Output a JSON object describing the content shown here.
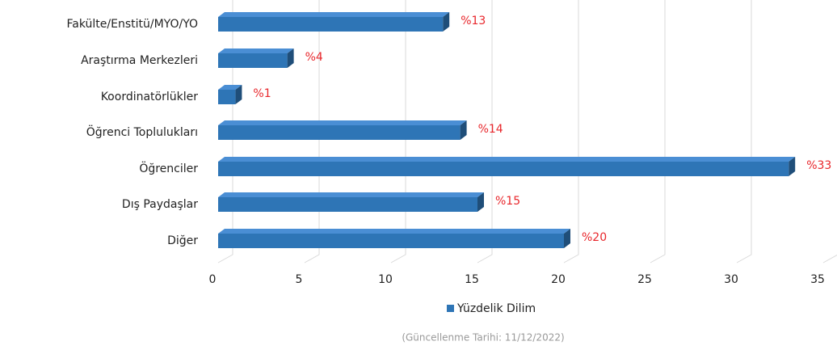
{
  "chart_data": {
    "type": "bar",
    "orientation": "horizontal",
    "categories": [
      "Fakülte/Enstitü/MYO/YO",
      "Araştırma Merkezleri",
      "Koordinatörlükler",
      "Öğrenci Toplulukları",
      "Öğrenciler",
      "Dış Paydaşlar",
      "Diğer"
    ],
    "series": [
      {
        "name": "Yüzdelik Dilim",
        "color": "#2e75b6",
        "values": [
          13,
          4,
          1,
          14,
          33,
          15,
          20
        ],
        "value_labels": [
          "%13",
          "%4",
          "%1",
          "%14",
          "%33",
          "%15",
          "%20"
        ]
      }
    ],
    "xlim": [
      0,
      35
    ],
    "xticks": [
      0,
      5,
      10,
      15,
      20,
      25,
      30,
      35
    ],
    "grid": true,
    "legend": "bottom",
    "note": "(Güncellenme Tarihi: 11/12/2022)"
  }
}
